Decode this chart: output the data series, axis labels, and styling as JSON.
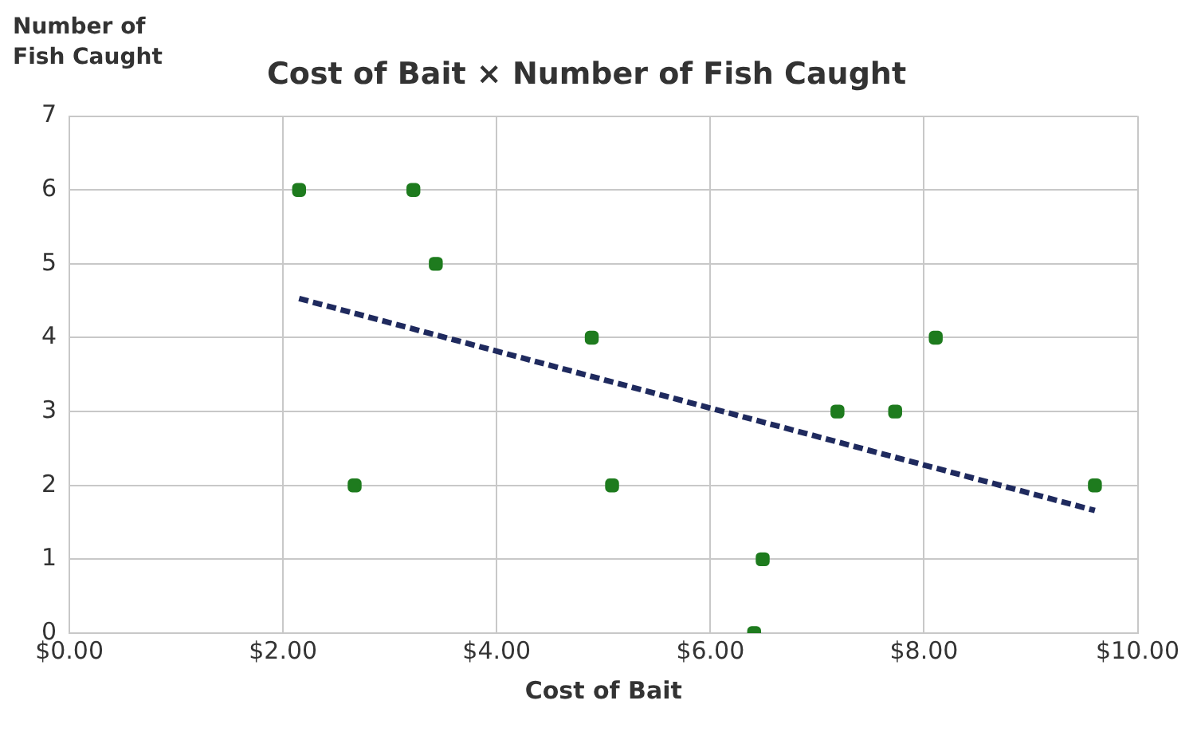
{
  "chart_data": {
    "type": "scatter",
    "title": "Cost of Bait × Number of Fish Caught",
    "xlabel": "Cost of Bait",
    "ylabel": "Number of Fish Caught",
    "xlim": [
      0,
      10
    ],
    "xticks": [
      {
        "value": 0,
        "label": "$0.00"
      },
      {
        "value": 2,
        "label": "$2.00"
      },
      {
        "value": 4,
        "label": "$4.00"
      },
      {
        "value": 6,
        "label": "$6.00"
      },
      {
        "value": 8,
        "label": "$8.00"
      },
      {
        "value": 10,
        "label": "$10.00"
      }
    ],
    "ylim": [
      0,
      7
    ],
    "yticks": [
      0,
      1,
      2,
      3,
      4,
      5,
      6,
      7
    ],
    "grid": true,
    "series": [
      {
        "marker": "square",
        "color": "#1e7b1e",
        "x": [
          2.15,
          3.22,
          3.43,
          2.67,
          4.89,
          5.08,
          6.49,
          6.41,
          7.19,
          7.73,
          8.11,
          9.6
        ],
        "values": [
          6,
          6,
          5,
          2,
          4,
          2,
          1,
          0,
          3,
          3,
          4,
          2
        ]
      },
      {
        "type": "line",
        "color": "#1f2a5e",
        "line_style": "dashed",
        "x": [
          2.15,
          9.6
        ],
        "values": [
          4.53,
          1.66
        ]
      }
    ]
  }
}
